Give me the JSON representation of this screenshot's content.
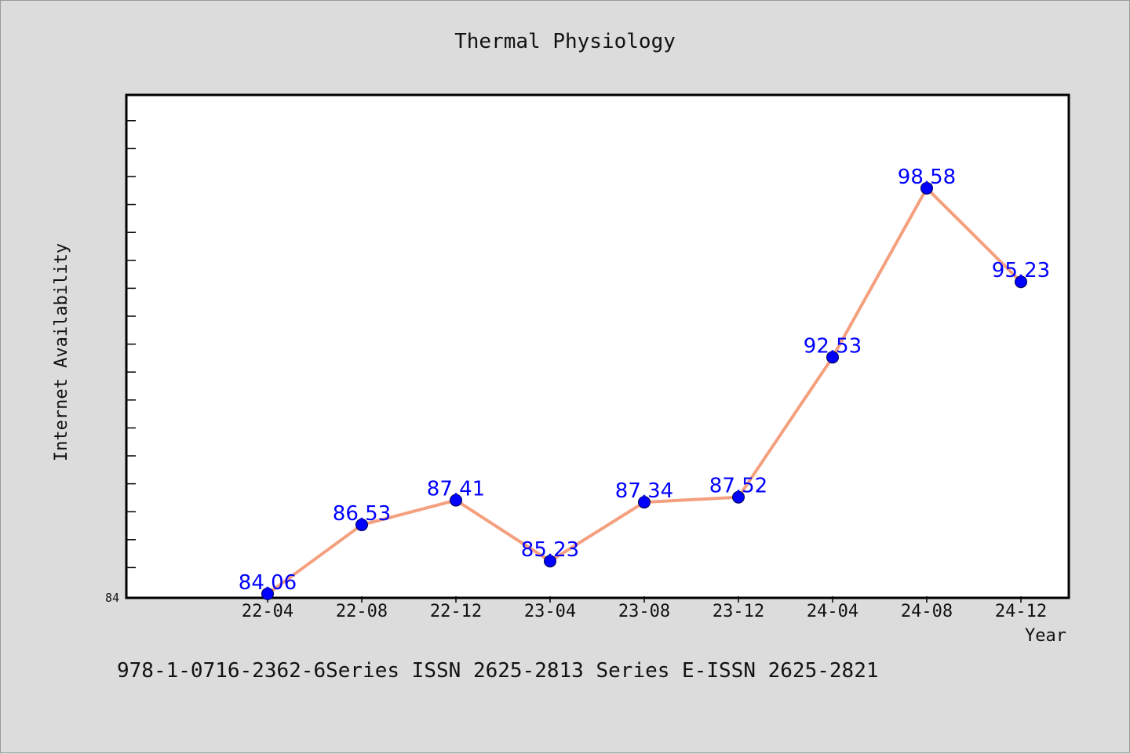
{
  "chart_data": {
    "type": "line",
    "title": "Thermal Physiology",
    "xlabel": "Year",
    "ylabel": "Internet Availability",
    "categories": [
      "22-04",
      "22-08",
      "22-12",
      "23-04",
      "23-08",
      "23-12",
      "24-04",
      "24-08",
      "24-12"
    ],
    "values": [
      84.06,
      86.53,
      87.41,
      85.23,
      87.34,
      87.52,
      92.53,
      98.58,
      95.23
    ],
    "value_labels": [
      "84.06",
      "86.53",
      "87.41",
      "85.23",
      "87.34",
      "87.52",
      "92.53",
      "98.58",
      "95.23"
    ],
    "ylim": [
      84,
      102
    ],
    "y_tick_labels": [
      "84"
    ],
    "grid": false,
    "line_color": "#f4a07e",
    "marker_color": "#0000ff",
    "label_color": "#0000ff"
  },
  "footer": "978-1-0716-2362-6Series ISSN 2625-2813 Series E-ISSN 2625-2821"
}
